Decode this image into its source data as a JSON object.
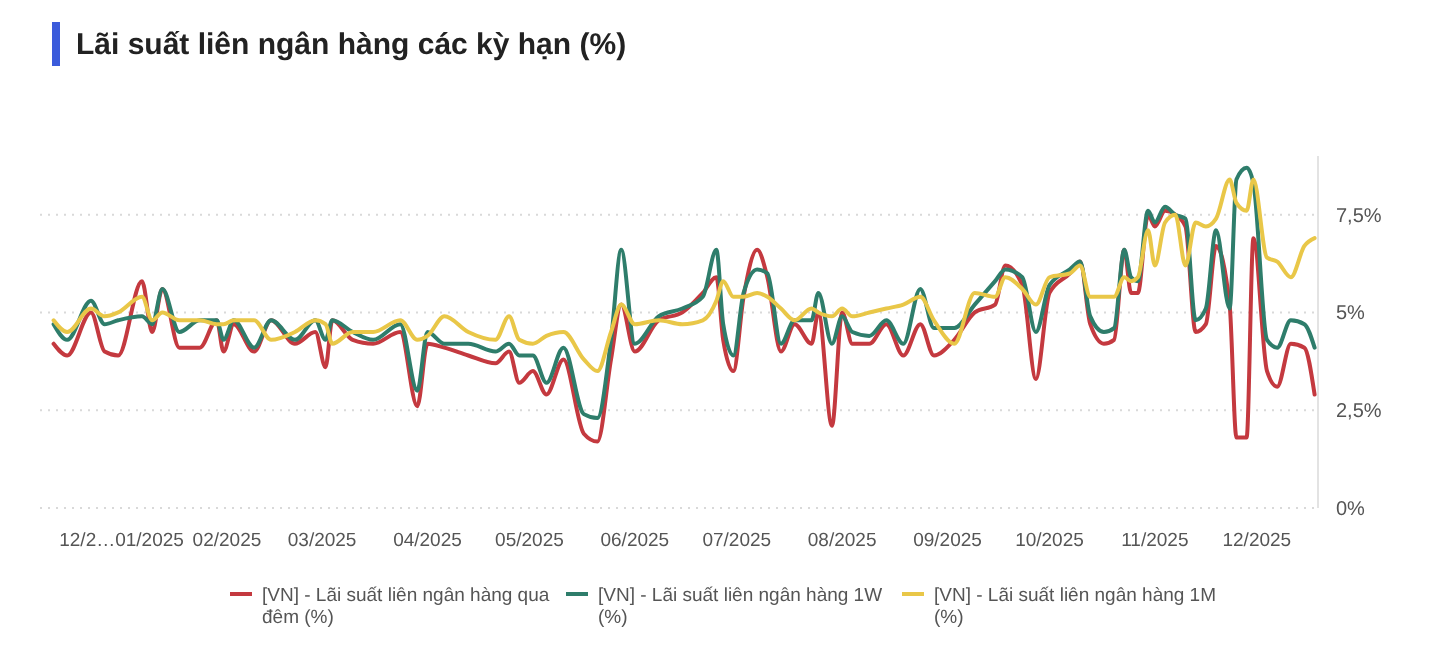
{
  "chart_data": {
    "type": "line",
    "title": "Lãi suất liên ngân hàng các kỳ hạn (%)",
    "x": [
      "2024-12-12",
      "2024-12-16",
      "2024-12-23",
      "2024-12-27",
      "2024-12-31",
      "2025-01-07",
      "2025-01-10",
      "2025-01-13",
      "2025-01-18",
      "2025-01-24",
      "2025-01-29",
      "2025-01-31",
      "2025-02-03",
      "2025-02-09",
      "2025-02-14",
      "2025-02-21",
      "2025-02-27",
      "2025-03-02",
      "2025-03-04",
      "2025-03-10",
      "2025-03-16",
      "2025-03-24",
      "2025-03-29",
      "2025-04-01",
      "2025-04-06",
      "2025-04-13",
      "2025-04-21",
      "2025-04-25",
      "2025-04-28",
      "2025-05-02",
      "2025-05-06",
      "2025-05-11",
      "2025-05-17",
      "2025-05-21",
      "2025-05-25",
      "2025-05-28",
      "2025-06-01",
      "2025-06-08",
      "2025-06-15",
      "2025-06-21",
      "2025-06-25",
      "2025-06-27",
      "2025-06-30",
      "2025-07-03",
      "2025-07-07",
      "2025-07-10",
      "2025-07-14",
      "2025-07-18",
      "2025-07-23",
      "2025-07-25",
      "2025-07-29",
      "2025-08-01",
      "2025-08-04",
      "2025-08-09",
      "2025-08-14",
      "2025-08-19",
      "2025-08-24",
      "2025-08-28",
      "2025-09-03",
      "2025-09-09",
      "2025-09-15",
      "2025-09-18",
      "2025-09-23",
      "2025-09-27",
      "2025-10-01",
      "2025-10-07",
      "2025-10-10",
      "2025-10-13",
      "2025-10-17",
      "2025-10-20",
      "2025-10-23",
      "2025-10-25",
      "2025-10-27",
      "2025-10-30",
      "2025-11-01",
      "2025-11-04",
      "2025-11-07",
      "2025-11-10",
      "2025-11-13",
      "2025-11-16",
      "2025-11-19",
      "2025-11-23",
      "2025-11-25",
      "2025-11-28",
      "2025-11-30",
      "2025-12-04",
      "2025-12-07",
      "2025-12-11",
      "2025-12-15",
      "2025-12-18"
    ],
    "series": [
      {
        "name": "[VN] - Lãi suất liên ngân hàng qua đêm (%)",
        "color": "#c4393f",
        "values": [
          4.2,
          3.9,
          5.0,
          4.0,
          3.9,
          5.8,
          4.5,
          5.6,
          4.1,
          4.1,
          4.8,
          4.0,
          4.7,
          4.0,
          4.8,
          4.2,
          4.5,
          3.6,
          4.8,
          4.3,
          4.2,
          4.5,
          2.6,
          4.2,
          4.1,
          3.9,
          3.7,
          4.0,
          3.2,
          3.5,
          2.9,
          3.8,
          1.9,
          1.7,
          3.8,
          5.2,
          4.0,
          4.8,
          5.0,
          5.5,
          5.9,
          4.3,
          3.5,
          5.4,
          6.6,
          5.9,
          4.0,
          4.7,
          4.2,
          5.0,
          2.1,
          5.0,
          4.2,
          4.2,
          4.7,
          3.9,
          4.7,
          3.9,
          4.3,
          5.0,
          5.2,
          6.2,
          5.7,
          3.3,
          5.5,
          6.0,
          6.3,
          4.7,
          4.2,
          4.3,
          6.6,
          5.5,
          5.5,
          7.5,
          7.2,
          7.6,
          7.5,
          7.2,
          4.5,
          4.7,
          6.7,
          5.2,
          1.8,
          1.8,
          6.9,
          3.5,
          3.1,
          4.2,
          4.1,
          2.9
        ]
      },
      {
        "name": "[VN] - Lãi suất liên ngân hàng 1W (%)",
        "color": "#2e7d6b",
        "values": [
          4.7,
          4.3,
          5.3,
          4.7,
          4.8,
          4.9,
          4.7,
          5.6,
          4.5,
          4.8,
          4.8,
          4.3,
          4.8,
          4.1,
          4.8,
          4.3,
          4.8,
          4.3,
          4.8,
          4.5,
          4.3,
          4.7,
          3.0,
          4.5,
          4.2,
          4.2,
          4.0,
          4.2,
          3.9,
          3.9,
          3.2,
          4.1,
          2.4,
          2.3,
          4.3,
          6.6,
          4.2,
          4.9,
          5.1,
          5.4,
          6.6,
          4.7,
          3.9,
          5.5,
          6.1,
          6.0,
          4.2,
          4.8,
          4.8,
          5.5,
          4.2,
          4.9,
          4.5,
          4.4,
          4.8,
          4.2,
          5.6,
          4.6,
          4.6,
          5.2,
          5.8,
          6.1,
          5.9,
          4.5,
          5.7,
          6.1,
          6.3,
          4.9,
          4.5,
          4.6,
          6.6,
          5.9,
          5.8,
          7.6,
          7.3,
          7.7,
          7.5,
          7.4,
          4.8,
          5.1,
          7.1,
          5.1,
          8.4,
          8.7,
          8.3,
          4.3,
          4.1,
          4.8,
          4.7,
          4.1
        ]
      },
      {
        "name": "[VN] - Lãi suất liên ngân hàng 1M (%)",
        "color": "#e9c748",
        "values": [
          4.8,
          4.5,
          5.1,
          4.9,
          5.0,
          5.4,
          4.8,
          5.0,
          4.8,
          4.8,
          4.7,
          4.7,
          4.8,
          4.8,
          4.3,
          4.5,
          4.8,
          4.7,
          4.2,
          4.5,
          4.5,
          4.8,
          4.3,
          4.4,
          4.9,
          4.5,
          4.3,
          4.9,
          4.3,
          4.2,
          4.4,
          4.5,
          3.8,
          3.5,
          4.5,
          5.2,
          4.7,
          4.8,
          4.7,
          4.8,
          5.3,
          5.8,
          5.4,
          5.4,
          5.5,
          5.4,
          5.1,
          4.8,
          5.1,
          5.0,
          4.9,
          5.1,
          4.9,
          5.0,
          5.1,
          5.2,
          5.4,
          4.8,
          4.2,
          5.5,
          5.4,
          5.9,
          5.6,
          5.2,
          5.9,
          6.0,
          6.2,
          5.4,
          5.4,
          5.4,
          5.9,
          5.8,
          5.9,
          7.1,
          6.2,
          7.3,
          7.5,
          6.2,
          7.3,
          7.2,
          7.4,
          8.4,
          7.8,
          7.6,
          8.4,
          6.4,
          6.3,
          5.9,
          6.7,
          6.9
        ]
      }
    ],
    "xlim": [
      "2024-12-08",
      "2025-12-19"
    ],
    "xticks": [
      {
        "value": "2025-01-01",
        "label": "12/2…01/2025"
      },
      {
        "value": "2025-02-01",
        "label": "02/2025"
      },
      {
        "value": "2025-03-01",
        "label": "03/2025"
      },
      {
        "value": "2025-04-01",
        "label": "04/2025"
      },
      {
        "value": "2025-05-01",
        "label": "05/2025"
      },
      {
        "value": "2025-06-01",
        "label": "06/2025"
      },
      {
        "value": "2025-07-01",
        "label": "07/2025"
      },
      {
        "value": "2025-08-01",
        "label": "08/2025"
      },
      {
        "value": "2025-09-01",
        "label": "09/2025"
      },
      {
        "value": "2025-10-01",
        "label": "10/2025"
      },
      {
        "value": "2025-11-01",
        "label": "11/2025"
      },
      {
        "value": "2025-12-01",
        "label": "12/2025"
      }
    ],
    "ylim": [
      0,
      9
    ],
    "yticks": [
      {
        "value": 0,
        "label": "0%"
      },
      {
        "value": 2.5,
        "label": "2,5%"
      },
      {
        "value": 5,
        "label": "5%"
      },
      {
        "value": 7.5,
        "label": "7,5%"
      }
    ],
    "grid": "y",
    "legend": "bottom",
    "marker": "none",
    "line_style": "solid"
  }
}
